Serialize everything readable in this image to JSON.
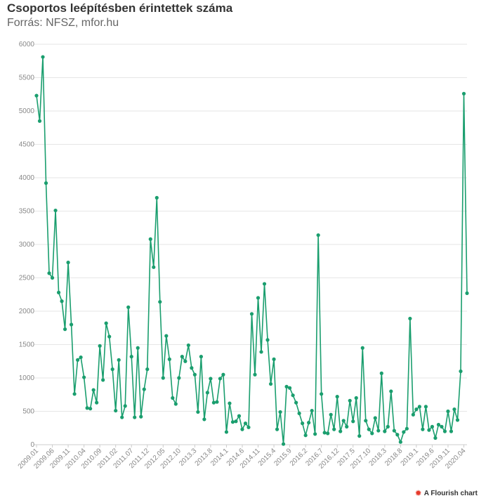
{
  "header": {
    "title": "Csoportos leépítésben érintettek száma",
    "subtitle": "Forrás: NFSZ, mfor.hu"
  },
  "footer": {
    "credit_label": "A Flourish chart",
    "credit_icon": "flourish-logo-icon"
  },
  "colors": {
    "line": "#1a9e6e",
    "grid": "#e6e6e6",
    "axis_text": "#888888"
  },
  "chart_data": {
    "type": "line",
    "title": "Csoportos leépítésben érintettek száma",
    "xlabel": "",
    "ylabel": "",
    "ylim": [
      0,
      6000
    ],
    "yticks": [
      0,
      500,
      1000,
      1500,
      2000,
      2500,
      3000,
      3500,
      4000,
      4500,
      5000,
      5500,
      6000
    ],
    "grid": true,
    "legend": "none",
    "xticks": [
      {
        "index": 0,
        "label": "2009.01"
      },
      {
        "index": 5,
        "label": "2009.06"
      },
      {
        "index": 10,
        "label": "2009.11"
      },
      {
        "index": 15,
        "label": "2010.04"
      },
      {
        "index": 20,
        "label": "2010.09"
      },
      {
        "index": 25,
        "label": "2011.02"
      },
      {
        "index": 30,
        "label": "2011.07"
      },
      {
        "index": 35,
        "label": "2011.12"
      },
      {
        "index": 40,
        "label": "2012.05"
      },
      {
        "index": 45,
        "label": "2012.10"
      },
      {
        "index": 50,
        "label": "2013.3"
      },
      {
        "index": 55,
        "label": "2013.8"
      },
      {
        "index": 60,
        "label": "2014.1"
      },
      {
        "index": 65,
        "label": "2014.6"
      },
      {
        "index": 70,
        "label": "2014.11"
      },
      {
        "index": 75,
        "label": "2015.4"
      },
      {
        "index": 80,
        "label": "2015.9"
      },
      {
        "index": 85,
        "label": "2016.2"
      },
      {
        "index": 90,
        "label": "2016.7"
      },
      {
        "index": 95,
        "label": "2016.12"
      },
      {
        "index": 100,
        "label": "2017.5"
      },
      {
        "index": 105,
        "label": "2017.10"
      },
      {
        "index": 110,
        "label": "2018.3"
      },
      {
        "index": 115,
        "label": "2018.8"
      },
      {
        "index": 120,
        "label": "2019.1"
      },
      {
        "index": 125,
        "label": "2019.6"
      },
      {
        "index": 130,
        "label": "2019.11"
      },
      {
        "index": 135,
        "label": "2020.04"
      }
    ],
    "series": [
      {
        "name": "",
        "values": [
          5230,
          4850,
          5810,
          3920,
          2570,
          2500,
          3510,
          2280,
          2150,
          1730,
          2730,
          1800,
          760,
          1270,
          1310,
          1010,
          550,
          540,
          820,
          630,
          1480,
          970,
          1820,
          1620,
          1130,
          510,
          1270,
          410,
          580,
          2060,
          1320,
          410,
          1450,
          420,
          830,
          1130,
          3080,
          2660,
          3700,
          2140,
          1000,
          1630,
          1280,
          700,
          610,
          1000,
          1320,
          1250,
          1490,
          1150,
          1050,
          490,
          1320,
          380,
          780,
          990,
          630,
          640,
          990,
          1050,
          190,
          620,
          340,
          350,
          430,
          230,
          320,
          260,
          1960,
          1050,
          2200,
          1390,
          2410,
          1570,
          910,
          1280,
          230,
          490,
          10,
          870,
          850,
          740,
          630,
          470,
          320,
          140,
          330,
          510,
          160,
          3140,
          760,
          180,
          170,
          450,
          230,
          720,
          200,
          360,
          270,
          660,
          350,
          700,
          130,
          1450,
          360,
          230,
          170,
          400,
          210,
          1070,
          200,
          270,
          800,
          210,
          150,
          40,
          190,
          240,
          1890,
          450,
          530,
          570,
          230,
          570,
          220,
          270,
          100,
          300,
          270,
          200,
          500,
          200,
          530,
          370,
          1100,
          5260,
          2270
        ]
      }
    ]
  }
}
